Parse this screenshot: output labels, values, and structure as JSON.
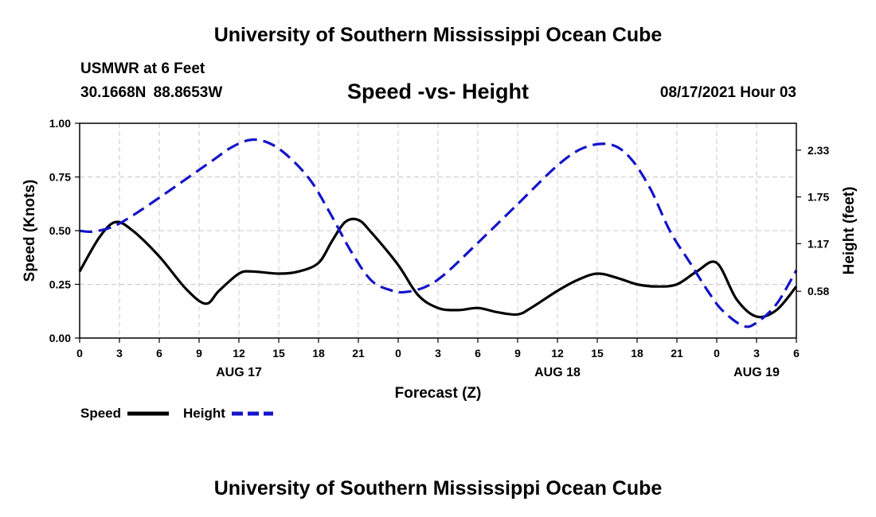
{
  "header": {
    "title": "University of Southern Mississippi Ocean Cube",
    "station_name": "USMWR at 6 Feet",
    "coordinates": "30.1668N  88.8653W",
    "date": "08/17/2021 Hour 03"
  },
  "footer": {
    "title": "University of Southern Mississippi Ocean Cube"
  },
  "colors": {
    "speed": "#000000",
    "height": "#1414c8",
    "grid": "#c8c8c8"
  },
  "chart_data": {
    "type": "line",
    "title": "Speed -vs- Height",
    "xlabel": "Forecast (Z)",
    "ylabel": "Speed (Knots)",
    "y2label": "Height (feet)",
    "xlim": [
      0,
      54
    ],
    "ylim": [
      0,
      1.0
    ],
    "y2lim": [
      0,
      2.663
    ],
    "x_ticks": [
      0,
      3,
      6,
      9,
      12,
      15,
      18,
      21,
      24,
      27,
      30,
      33,
      36,
      39,
      42,
      45,
      48,
      51,
      54
    ],
    "x_tick_labels": [
      "0",
      "3",
      "6",
      "9",
      "12",
      "15",
      "18",
      "21",
      "0",
      "3",
      "6",
      "9",
      "12",
      "15",
      "18",
      "21",
      "0",
      "3",
      "6"
    ],
    "date_labels": [
      {
        "x": 12,
        "label": "AUG 17"
      },
      {
        "x": 36,
        "label": "AUG 18"
      },
      {
        "x": 51,
        "label": "AUG 19"
      }
    ],
    "y_ticks": [
      0,
      0.25,
      0.5,
      0.75,
      1.0
    ],
    "y_tick_labels": [
      "0.00",
      "0.25",
      "0.50",
      "0.75",
      "1.00"
    ],
    "y2_ticks": [
      0.58,
      1.17,
      1.75,
      2.33
    ],
    "y2_tick_labels": [
      "0.58",
      "1.17",
      "1.75",
      "2.33"
    ],
    "grid": true,
    "legend_position": "bottom-left",
    "series": [
      {
        "name": "Speed",
        "axis": "left",
        "style": "solid",
        "x": [
          0,
          1.5,
          2.7,
          4,
          6,
          8,
          9.5,
          10.5,
          12,
          13,
          15,
          16.5,
          18,
          19,
          20,
          21,
          22,
          24,
          25.5,
          27,
          28.5,
          30,
          31.5,
          33,
          34,
          36,
          37.5,
          39,
          40.5,
          42,
          43.5,
          45,
          46.5,
          48,
          49.5,
          51,
          52.5,
          54
        ],
        "values": [
          0.31,
          0.47,
          0.54,
          0.5,
          0.38,
          0.23,
          0.16,
          0.22,
          0.3,
          0.31,
          0.3,
          0.31,
          0.35,
          0.45,
          0.54,
          0.55,
          0.49,
          0.34,
          0.2,
          0.14,
          0.13,
          0.14,
          0.12,
          0.11,
          0.14,
          0.22,
          0.27,
          0.3,
          0.28,
          0.25,
          0.24,
          0.25,
          0.31,
          0.35,
          0.18,
          0.1,
          0.13,
          0.24
        ]
      },
      {
        "name": "Height",
        "axis": "right",
        "style": "dashed",
        "x": [
          0,
          1,
          2.5,
          4,
          6,
          8,
          10,
          11.5,
          13,
          14.5,
          16,
          17.5,
          19,
          20.5,
          22,
          23.5,
          24.5,
          26,
          27.5,
          30,
          33,
          36,
          38,
          40,
          41.5,
          43,
          44.5,
          46,
          47.5,
          48.5,
          50,
          51,
          52.5,
          54
        ],
        "values": [
          1.33,
          1.32,
          1.38,
          1.52,
          1.74,
          1.97,
          2.2,
          2.37,
          2.46,
          2.4,
          2.21,
          1.93,
          1.51,
          1.06,
          0.71,
          0.59,
          0.57,
          0.63,
          0.79,
          1.18,
          1.66,
          2.14,
          2.36,
          2.4,
          2.23,
          1.85,
          1.32,
          0.93,
          0.54,
          0.33,
          0.15,
          0.19,
          0.42,
          0.84
        ]
      }
    ]
  }
}
